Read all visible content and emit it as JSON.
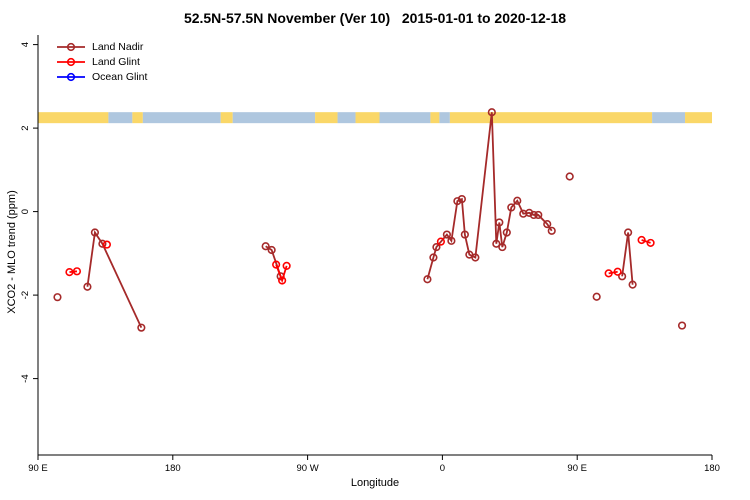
{
  "title": "52.5N-57.5N November (Ver 10)   2015-01-01 to 2020-12-18",
  "axes": {
    "xlabel": "Longitude",
    "ylabel": "XCO2 - MLO trend (ppm)"
  },
  "chart_data": {
    "type": "scatter",
    "title": "52.5N-57.5N November (Ver 10)   2015-01-01 to 2020-12-18",
    "xlabel": "Longitude",
    "ylabel": "XCO2 - MLO trend (ppm)",
    "grid": false,
    "legend_position": "top-left",
    "x_axis": {
      "domain_deg": [
        0,
        450
      ],
      "ticks": [
        {
          "deg": 0,
          "label": "90 E"
        },
        {
          "deg": 90,
          "label": "180"
        },
        {
          "deg": 180,
          "label": "90 W"
        },
        {
          "deg": 270,
          "label": "0"
        },
        {
          "deg": 360,
          "label": "90 E"
        },
        {
          "deg": 450,
          "label": "180"
        }
      ]
    },
    "y_axis": {
      "range": [
        -5.83,
        4.23
      ],
      "ticks": [
        -4,
        -2,
        0,
        2,
        4
      ]
    },
    "band": {
      "y_value": 2.25,
      "colors": {
        "land": "#FAD768",
        "ocean": "#AFC7DF"
      },
      "segments": [
        {
          "from": 0,
          "to": 47,
          "surface": "land"
        },
        {
          "from": 47,
          "to": 63,
          "surface": "ocean"
        },
        {
          "from": 63,
          "to": 70,
          "surface": "land"
        },
        {
          "from": 70,
          "to": 122,
          "surface": "ocean"
        },
        {
          "from": 122,
          "to": 130,
          "surface": "land"
        },
        {
          "from": 130,
          "to": 185,
          "surface": "ocean"
        },
        {
          "from": 185,
          "to": 200,
          "surface": "land"
        },
        {
          "from": 200,
          "to": 212,
          "surface": "ocean"
        },
        {
          "from": 212,
          "to": 228,
          "surface": "land"
        },
        {
          "from": 228,
          "to": 262,
          "surface": "ocean"
        },
        {
          "from": 262,
          "to": 268,
          "surface": "land"
        },
        {
          "from": 268,
          "to": 275,
          "surface": "ocean"
        },
        {
          "from": 275,
          "to": 410,
          "surface": "land"
        },
        {
          "from": 410,
          "to": 432,
          "surface": "ocean"
        },
        {
          "from": 432,
          "to": 450,
          "surface": "land"
        }
      ]
    },
    "series": [
      {
        "name": "Land Nadir",
        "color": "#A52A2A",
        "marker": "open-circle",
        "traces": [
          [
            [
              13,
              -2.05
            ]
          ],
          [
            [
              33,
              -1.8
            ],
            [
              38,
              -0.5
            ],
            [
              43,
              -0.77
            ],
            [
              69,
              -2.78
            ]
          ],
          [
            [
              152,
              -0.83
            ],
            [
              156,
              -0.92
            ],
            [
              162,
              -1.55
            ]
          ],
          [
            [
              260,
              -1.62
            ],
            [
              264,
              -1.1
            ],
            [
              266,
              -0.85
            ],
            [
              273,
              -0.55
            ],
            [
              276,
              -0.7
            ],
            [
              280,
              0.25
            ],
            [
              283,
              0.3
            ],
            [
              285,
              -0.55
            ],
            [
              288,
              -1.03
            ],
            [
              292,
              -1.1
            ],
            [
              303,
              2.38
            ],
            [
              306,
              -0.77
            ],
            [
              308,
              -0.26
            ],
            [
              310,
              -0.85
            ],
            [
              313,
              -0.5
            ],
            [
              316,
              0.1
            ],
            [
              320,
              0.26
            ],
            [
              324,
              -0.05
            ],
            [
              328,
              -0.03
            ],
            [
              331,
              -0.08
            ],
            [
              334,
              -0.08
            ],
            [
              340,
              -0.3
            ],
            [
              343,
              -0.46
            ]
          ],
          [
            [
              355,
              0.84
            ]
          ],
          [
            [
              373,
              -2.04
            ]
          ],
          [
            [
              390,
              -1.55
            ],
            [
              394,
              -0.5
            ],
            [
              397,
              -1.75
            ]
          ],
          [
            [
              430,
              -2.73
            ]
          ]
        ]
      },
      {
        "name": "Land Glint",
        "color": "#FF0000",
        "marker": "open-circle",
        "traces": [
          [
            [
              21,
              -1.45
            ],
            [
              26,
              -1.43
            ]
          ],
          [
            [
              46,
              -0.79
            ]
          ],
          [
            [
              159,
              -1.27
            ],
            [
              163,
              -1.65
            ],
            [
              166,
              -1.3
            ]
          ],
          [
            [
              269,
              -0.72
            ]
          ],
          [
            [
              381,
              -1.48
            ],
            [
              387,
              -1.44
            ]
          ],
          [
            [
              403,
              -0.68
            ],
            [
              409,
              -0.75
            ]
          ]
        ]
      },
      {
        "name": "Ocean Glint",
        "color": "#0000FF",
        "marker": "open-circle",
        "traces": []
      }
    ]
  }
}
